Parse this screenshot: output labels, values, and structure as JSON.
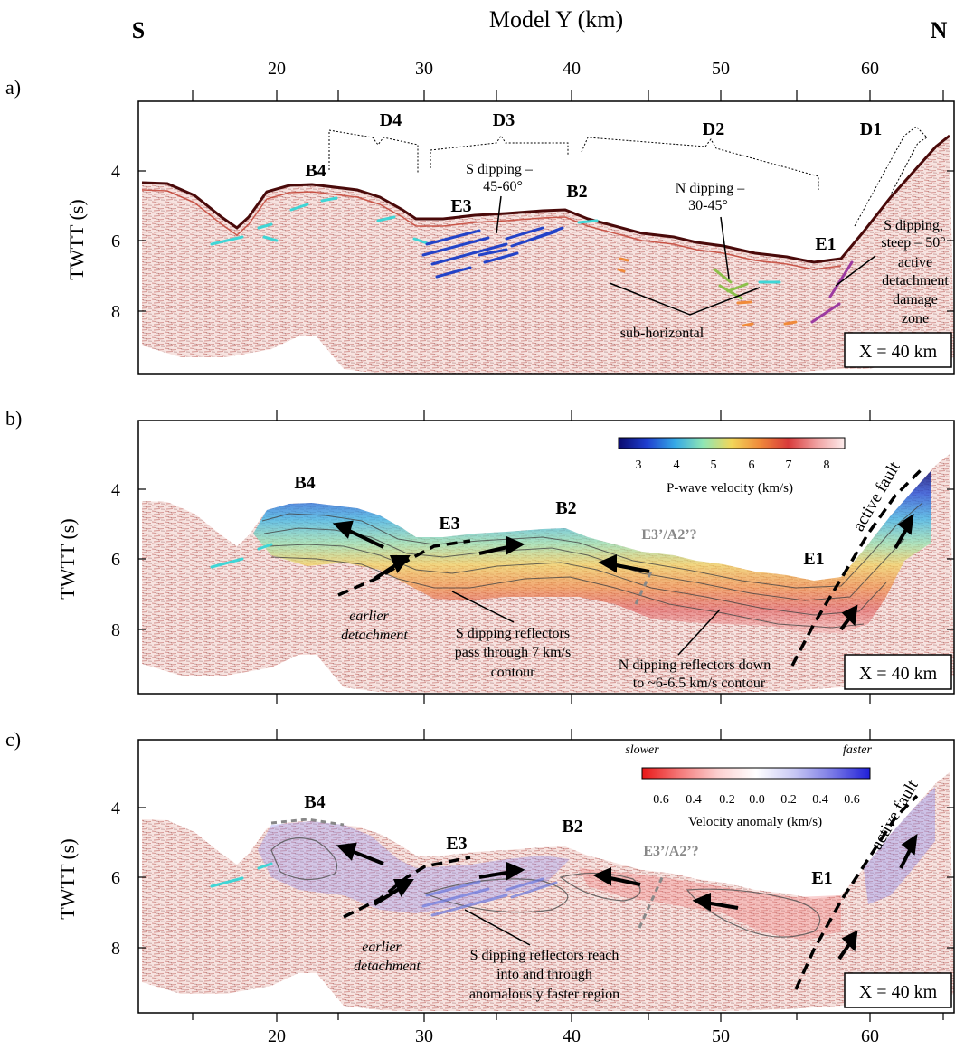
{
  "figure": {
    "axis_top_title": "Model Y (km)",
    "south_label": "S",
    "north_label": "N",
    "y_axis_label": "TWTT (s)",
    "x_ticks": [
      "20",
      "30",
      "40",
      "50",
      "60"
    ],
    "y_ticks": [
      "4",
      "6",
      "8"
    ]
  },
  "panels": [
    {
      "id": "a",
      "label": "a)",
      "xbox": "X = 40 km",
      "domains": [
        "D4",
        "D3",
        "D2",
        "D1"
      ],
      "labels": {
        "b4": "B4",
        "e3": "E3",
        "b2": "B2",
        "e1": "E1",
        "s_dip_1": "S dipping –",
        "s_dip_2": "45-60°",
        "n_dip_1": "N dipping –",
        "n_dip_2": "30-45°",
        "steep_1": "S dipping,",
        "steep_2": "steep – 50°",
        "active_1": "active",
        "active_2": "detachment",
        "active_3": "damage",
        "active_4": "zone",
        "subhorizontal": "sub-horizontal"
      }
    },
    {
      "id": "b",
      "label": "b)",
      "xbox": "X = 40 km",
      "colorbar": {
        "ticks": [
          "3",
          "4",
          "5",
          "6",
          "7",
          "8"
        ],
        "title": "P-wave velocity (km/s)",
        "stops": [
          "#0a0a6e",
          "#1f3fd0",
          "#35a9e6",
          "#8fe6b4",
          "#f2d65a",
          "#f08a3a",
          "#d83a3a",
          "#f0a0a0",
          "#fdecec"
        ]
      },
      "labels": {
        "b4": "B4",
        "e3": "E3",
        "b2": "B2",
        "e1": "E1",
        "e3a2": "E3’/A2’?",
        "active_fault": "active fault",
        "earlier_1": "earlier",
        "earlier_2": "detachment",
        "s_ref_1": "S dipping reflectors",
        "s_ref_2": "pass through 7 km/s",
        "s_ref_3": "contour",
        "n_ref_1": "N dipping reflectors down",
        "n_ref_2": "to ~6-6.5 km/s contour"
      }
    },
    {
      "id": "c",
      "label": "c)",
      "xbox": "X = 40 km",
      "colorbar": {
        "ticks": [
          "−0.6",
          "−0.4",
          "−0.2",
          "0.0",
          "0.2",
          "0.4",
          "0.6"
        ],
        "title": "Velocity anomaly (km/s)",
        "slower": "slower",
        "faster": "faster",
        "stops": [
          "#e81818",
          "#f47a7a",
          "#fbd0d0",
          "#ffffff",
          "#c8c8f4",
          "#7a7ae6",
          "#2020d8"
        ]
      },
      "labels": {
        "b4": "B4",
        "e3": "E3",
        "b2": "B2",
        "e1": "E1",
        "e3a2": "E3’/A2’?",
        "active_fault": "active fault",
        "earlier_1": "earlier",
        "earlier_2": "detachment",
        "s_ref_1": "S dipping reflectors reach",
        "s_ref_2": "into and through",
        "s_ref_3": "anomalously faster region"
      }
    }
  ]
}
